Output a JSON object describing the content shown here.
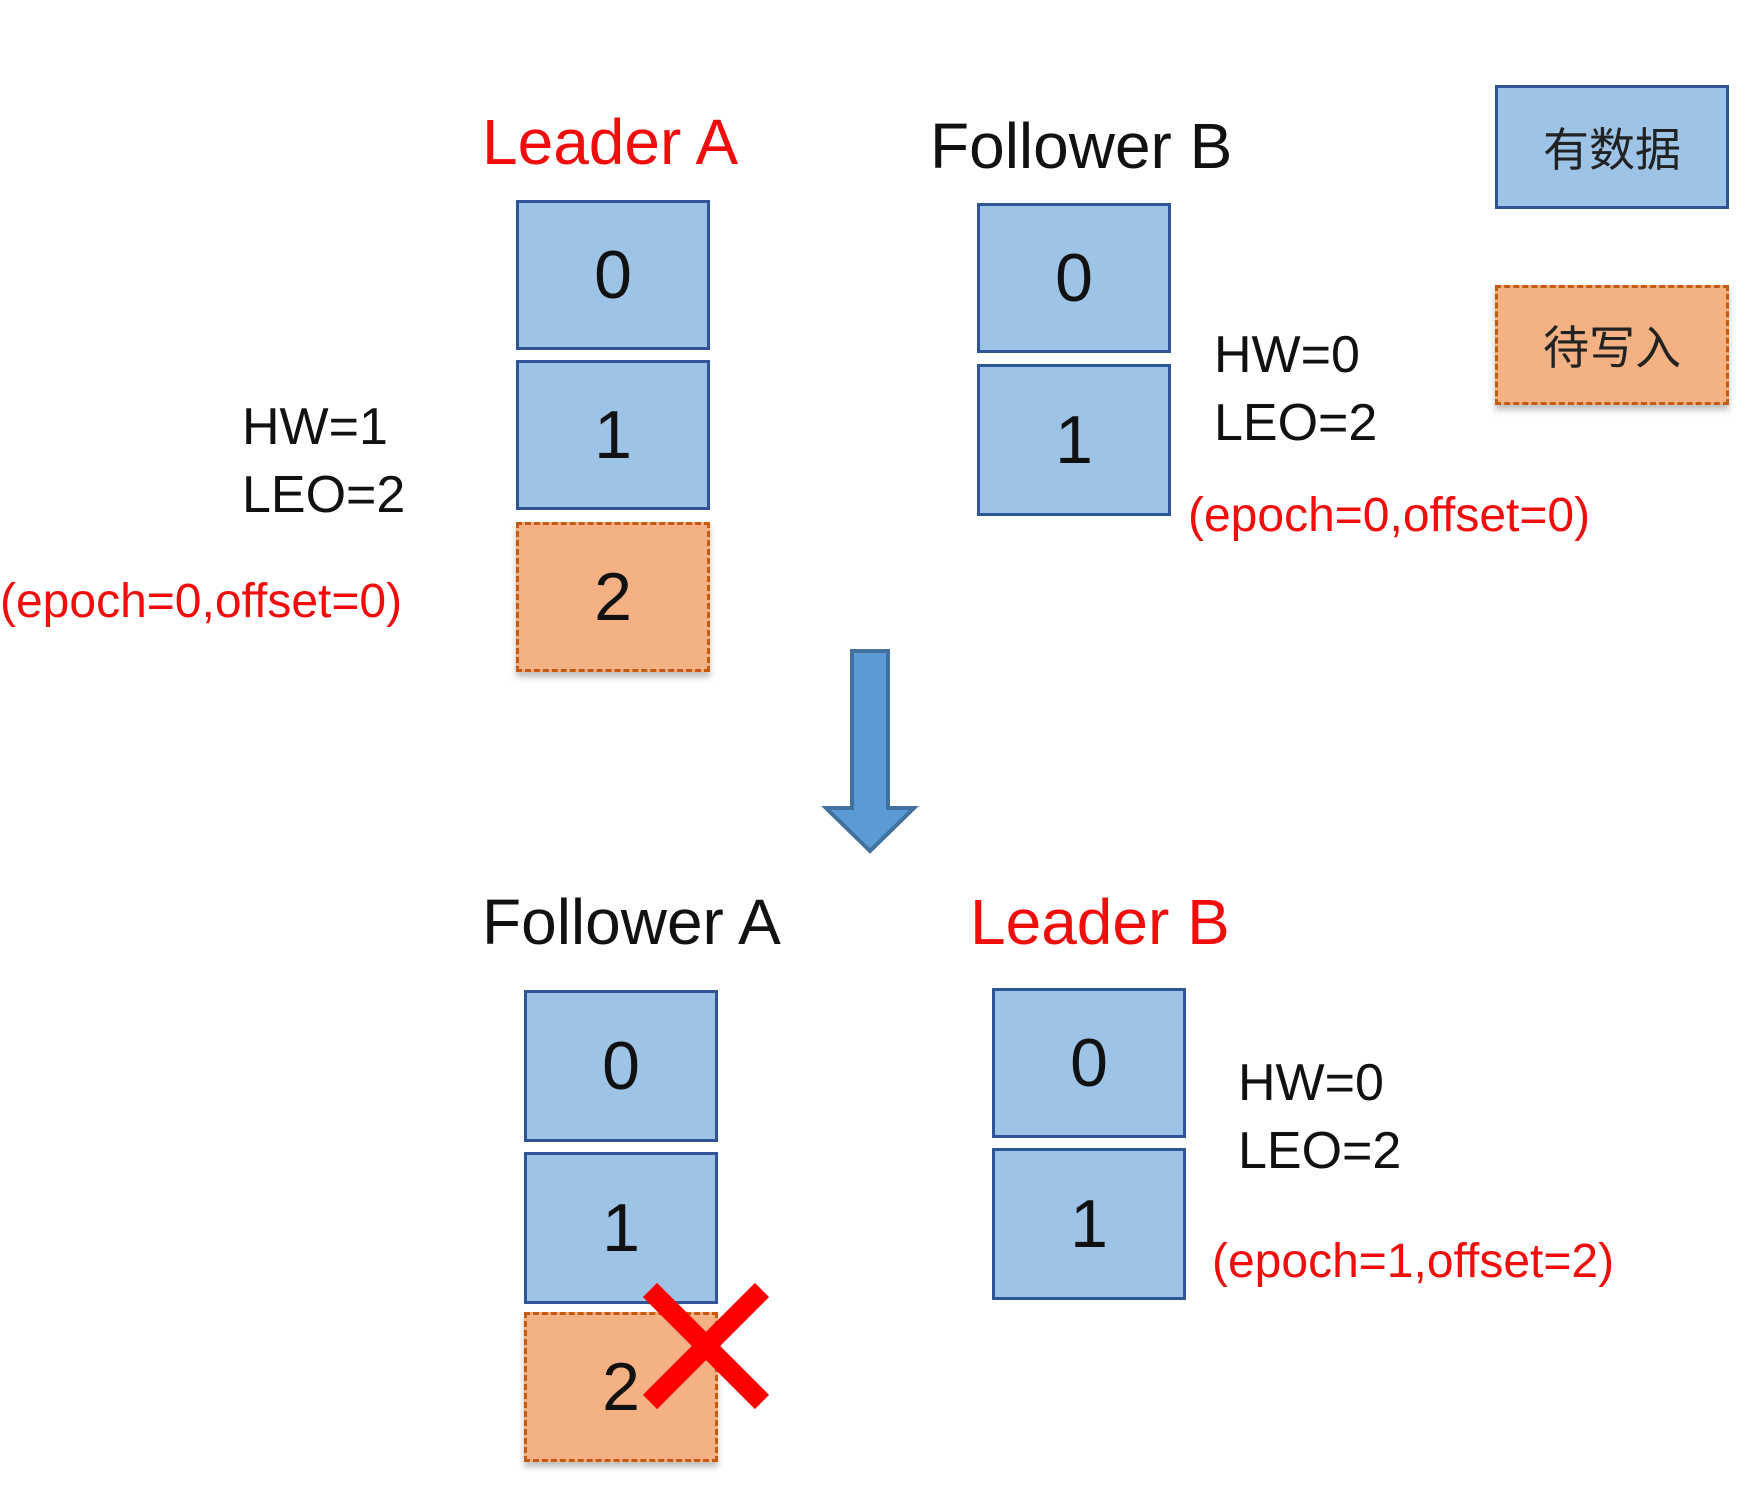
{
  "top": {
    "leader_a": {
      "title": "Leader A",
      "cells": [
        "0",
        "1",
        "2"
      ],
      "hw": "HW=1",
      "leo": "LEO=2",
      "epoch": "(epoch=0,offset=0)"
    },
    "follower_b": {
      "title": "Follower B",
      "cells": [
        "0",
        "1"
      ],
      "hw": "HW=0",
      "leo": "LEO=2",
      "epoch": "(epoch=0,offset=0)"
    }
  },
  "bottom": {
    "follower_a": {
      "title": "Follower A",
      "cells": [
        "0",
        "1",
        "2"
      ]
    },
    "leader_b": {
      "title": "Leader B",
      "cells": [
        "0",
        "1"
      ],
      "hw": "HW=0",
      "leo": "LEO=2",
      "epoch": "(epoch=1,offset=2)"
    }
  },
  "legend": {
    "has_data": "有数据",
    "pending_write": "待写入"
  },
  "colors": {
    "data_fill": "#9dc3e6",
    "data_border": "#2f5597",
    "pending_fill": "#f4b183",
    "pending_border": "#c55a11",
    "highlight_text": "#f20d0d",
    "arrow": "#5b9bd5",
    "delete_mark": "#ff0000"
  },
  "icons": {
    "transition": "down-arrow-icon",
    "truncate": "cross-icon"
  }
}
